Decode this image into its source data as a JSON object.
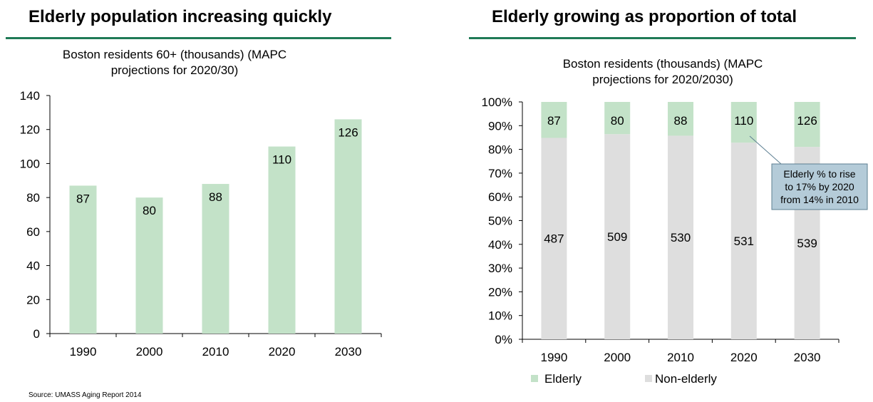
{
  "colors": {
    "elderly": "#c3e2c8",
    "non_elderly": "#dedede",
    "rule": "#1f7a56",
    "callout_bg": "#b4cbd8",
    "callout_border": "#5d7f92"
  },
  "chart_data": [
    {
      "type": "bar",
      "panel_title": "Elderly population increasing quickly",
      "title": "Boston residents 60+ (thousands) (MAPC projections for 2020/30)",
      "categories": [
        "1990",
        "2000",
        "2010",
        "2020",
        "2030"
      ],
      "values": [
        87,
        80,
        88,
        110,
        126
      ],
      "data_labels": [
        "87",
        "80",
        "88",
        "110",
        "126"
      ],
      "ylim": [
        0,
        140
      ],
      "yticks": [
        "0",
        "20",
        "40",
        "60",
        "80",
        "100",
        "120",
        "140"
      ],
      "grid": false,
      "color": "#c3e2c8"
    },
    {
      "type": "bar",
      "stacked": "percent",
      "panel_title": "Elderly growing as proportion of total",
      "title": "Boston residents (thousands) (MAPC projections for 2020/2030)",
      "categories": [
        "1990",
        "2000",
        "2010",
        "2020",
        "2030"
      ],
      "series": [
        {
          "name": "Elderly",
          "values": [
            87,
            80,
            88,
            110,
            126
          ],
          "color": "#c3e2c8"
        },
        {
          "name": "Non-elderly",
          "values": [
            487,
            509,
            530,
            531,
            539
          ],
          "color": "#dedede"
        }
      ],
      "ylim": [
        0,
        100
      ],
      "yticks": [
        "0%",
        "10%",
        "20%",
        "30%",
        "40%",
        "50%",
        "60%",
        "70%",
        "80%",
        "90%",
        "100%"
      ],
      "legend": "bottom",
      "annotation": "Elderly % to rise to 17% by 2020 from 14% in 2010"
    }
  ],
  "source": "Source: UMASS Aging Report 2014"
}
